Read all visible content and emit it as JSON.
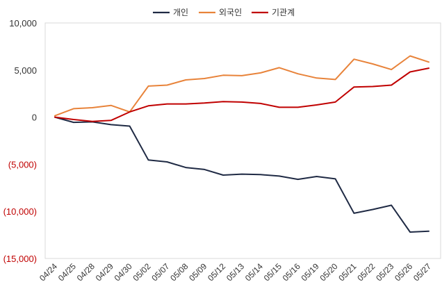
{
  "chart_data": {
    "type": "line",
    "categories": [
      "04/24",
      "04/25",
      "04/28",
      "04/29",
      "04/30",
      "05/02",
      "05/07",
      "05/08",
      "05/09",
      "05/12",
      "05/13",
      "05/14",
      "05/15",
      "05/16",
      "05/19",
      "05/20",
      "05/21",
      "05/22",
      "05/23",
      "05/26",
      "05/27"
    ],
    "series": [
      {
        "name": "개인",
        "color": "#1f2a44",
        "values": [
          0,
          -550,
          -500,
          -800,
          -950,
          -4550,
          -4750,
          -5350,
          -5550,
          -6150,
          -6050,
          -6100,
          -6250,
          -6600,
          -6300,
          -6550,
          -10200,
          -9800,
          -9350,
          -12200,
          -12100
        ]
      },
      {
        "name": "외국인",
        "color": "#e8833a",
        "values": [
          150,
          900,
          1000,
          1250,
          550,
          3300,
          3400,
          3950,
          4100,
          4450,
          4400,
          4700,
          5250,
          4600,
          4150,
          4000,
          6150,
          5650,
          5050,
          6500,
          5850
        ]
      },
      {
        "name": "기관계",
        "color": "#c00000",
        "values": [
          0,
          -250,
          -450,
          -350,
          550,
          1200,
          1400,
          1400,
          1500,
          1650,
          1600,
          1450,
          1050,
          1050,
          1300,
          1600,
          3200,
          3250,
          3400,
          4800,
          5200
        ]
      }
    ],
    "y_ticks": [
      {
        "value": 10000,
        "label": "10,000",
        "color": "#333333"
      },
      {
        "value": 5000,
        "label": "5,000",
        "color": "#333333"
      },
      {
        "value": 0,
        "label": "0",
        "color": "#333333"
      },
      {
        "value": -5000,
        "label": "(5,000)",
        "color": "#c00000"
      },
      {
        "value": -10000,
        "label": "(10,000)",
        "color": "#c00000"
      },
      {
        "value": -15000,
        "label": "(15,000)",
        "color": "#c00000"
      }
    ],
    "ylim": [
      -15000,
      10000
    ],
    "grid": false,
    "legend_position": "top-center",
    "xlabel": "",
    "ylabel": "",
    "title": ""
  }
}
